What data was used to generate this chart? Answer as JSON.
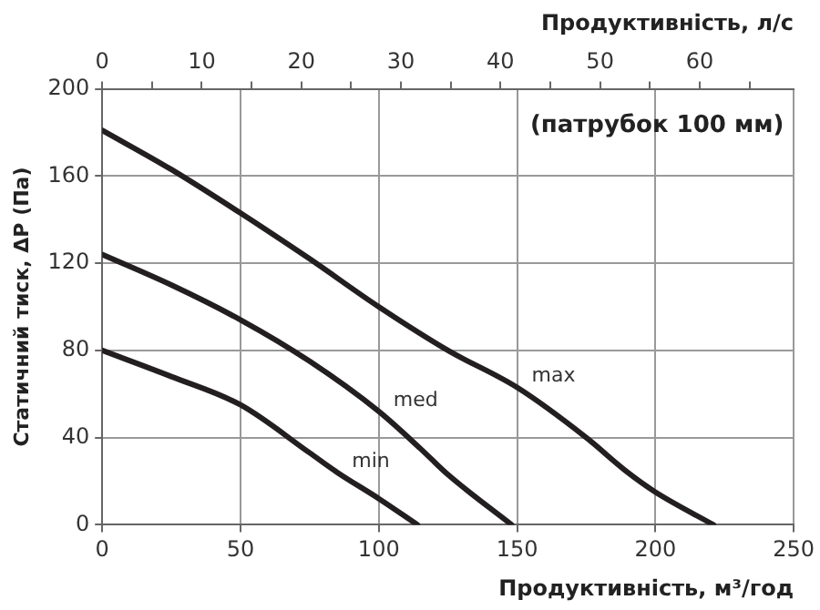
{
  "chart_data": {
    "type": "line",
    "xlabel": "Продуктивність, м³/год",
    "x2label": "Продуктивність, л/с",
    "ylabel": "Статичний тиск, ΔP (Па)",
    "annotations": [
      "(патрубок 100 мм)"
    ],
    "xlim": [
      0,
      250
    ],
    "xticks": [
      0,
      50,
      100,
      150,
      200,
      250
    ],
    "x2lim": [
      0,
      69.44
    ],
    "x2ticks": [
      0,
      {
        "value": 5,
        "label": null
      },
      10,
      {
        "value": 15,
        "label": null
      },
      20,
      {
        "value": 25,
        "label": null
      },
      30,
      {
        "value": 35,
        "label": null
      },
      40,
      {
        "value": 45,
        "label": null
      },
      50,
      {
        "value": 55,
        "label": null
      },
      60,
      {
        "value": 65,
        "label": null
      }
    ],
    "ylim": [
      0,
      200
    ],
    "yticks": [
      0,
      40,
      80,
      120,
      160,
      200
    ],
    "grid": true,
    "legend": false,
    "marker": "none",
    "line_style": "solid",
    "series": [
      {
        "name": "max",
        "color": "#231f20",
        "x": [
          0,
          25,
          50,
          75,
          100,
          125,
          150,
          175,
          190,
          200,
          221
        ],
        "values": [
          181,
          163,
          143,
          122,
          100,
          80,
          63,
          40,
          24,
          15,
          0
        ]
      },
      {
        "name": "med",
        "color": "#231f20",
        "x": [
          0,
          25,
          50,
          75,
          100,
          115,
          125,
          148
        ],
        "values": [
          124,
          110,
          94,
          75,
          52,
          35,
          23,
          0
        ]
      },
      {
        "name": "min",
        "color": "#231f20",
        "x": [
          0,
          25,
          50,
          75,
          85,
          100,
          114
        ],
        "values": [
          80,
          68,
          55,
          33,
          24,
          12,
          0
        ]
      }
    ]
  }
}
